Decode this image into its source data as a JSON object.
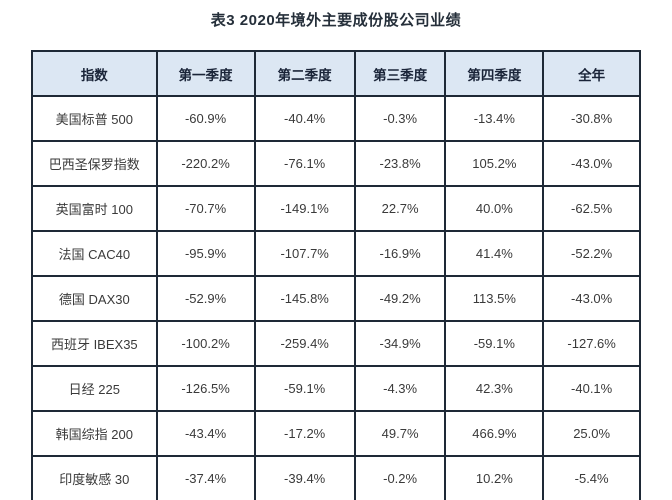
{
  "title": "表3 2020年境外主要成份股公司业绩",
  "colors": {
    "header_bg": "#dce7f3",
    "border": "#1e2936",
    "header_text": "#1a2438",
    "cell_text": "#3a3a3a",
    "title_text": "#252f3a"
  },
  "table": {
    "headers": [
      "指数",
      "第一季度",
      "第二季度",
      "第三季度",
      "第四季度",
      "全年"
    ],
    "rows": [
      {
        "index": "美国标普 500",
        "values": [
          "-60.9%",
          "-40.4%",
          "-0.3%",
          "-13.4%",
          "-30.8%"
        ]
      },
      {
        "index": "巴西圣保罗指数",
        "values": [
          "-220.2%",
          "-76.1%",
          "-23.8%",
          "105.2%",
          "-43.0%"
        ]
      },
      {
        "index": "英国富时 100",
        "values": [
          "-70.7%",
          "-149.1%",
          "22.7%",
          "40.0%",
          "-62.5%"
        ]
      },
      {
        "index": "法国 CAC40",
        "values": [
          "-95.9%",
          "-107.7%",
          "-16.9%",
          "41.4%",
          "-52.2%"
        ]
      },
      {
        "index": "德国 DAX30",
        "values": [
          "-52.9%",
          "-145.8%",
          "-49.2%",
          "113.5%",
          "-43.0%"
        ]
      },
      {
        "index": "西班牙 IBEX35",
        "values": [
          "-100.2%",
          "-259.4%",
          "-34.9%",
          "-59.1%",
          "-127.6%"
        ]
      },
      {
        "index": "日经 225",
        "values": [
          "-126.5%",
          "-59.1%",
          "-4.3%",
          "42.3%",
          "-40.1%"
        ]
      },
      {
        "index": "韩国综指 200",
        "values": [
          "-43.4%",
          "-17.2%",
          "49.7%",
          "466.9%",
          "25.0%"
        ]
      },
      {
        "index": "印度敏感 30",
        "values": [
          "-37.4%",
          "-39.4%",
          "-0.2%",
          "10.2%",
          "-5.4%"
        ]
      }
    ]
  }
}
